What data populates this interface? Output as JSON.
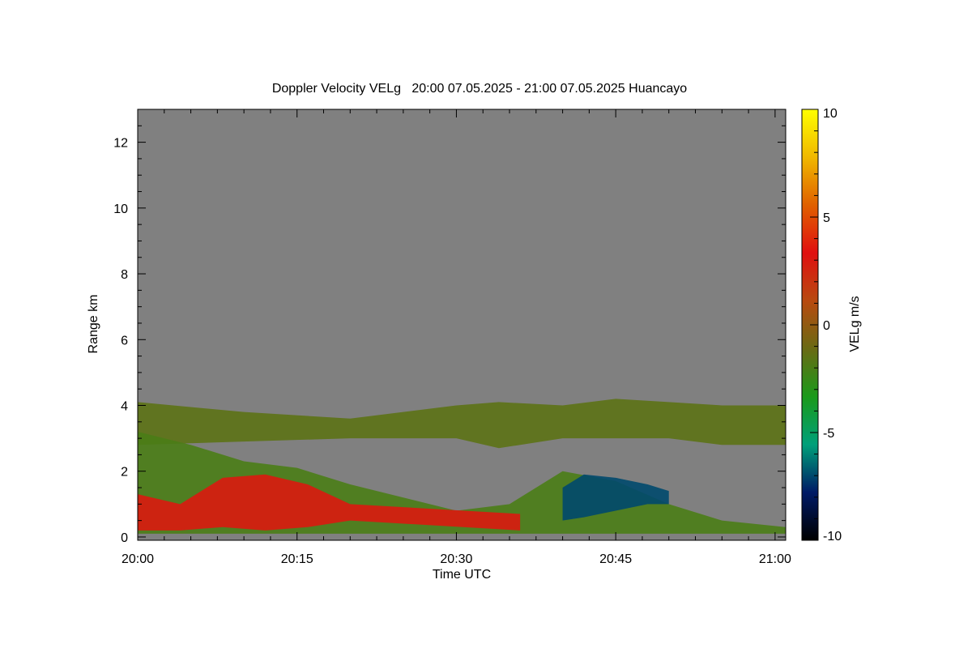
{
  "chart_data": {
    "type": "heatmap",
    "title": "Doppler Velocity VELg   20:00 07.05.2025 - 21:00 07.05.2025 Huancayo",
    "xlabel": "Time UTC",
    "ylabel": "Range km",
    "x_unit": "minutes after 20:00 UTC",
    "xlim": [
      0,
      61
    ],
    "ylim": [
      -0.1,
      13.0
    ],
    "x_ticks": [
      {
        "value": 0,
        "label": "20:00"
      },
      {
        "value": 15,
        "label": "20:15"
      },
      {
        "value": 30,
        "label": "20:30"
      },
      {
        "value": 45,
        "label": "20:45"
      },
      {
        "value": 60,
        "label": "21:00"
      }
    ],
    "y_ticks": [
      0,
      2,
      4,
      6,
      8,
      10,
      12
    ],
    "colorbar": {
      "label": "VELg m/s",
      "range": [
        -10,
        10
      ],
      "ticks": [
        10,
        5,
        0,
        -5,
        -10
      ],
      "colors": [
        "#000000",
        "#001a66",
        "#00a07a",
        "#1a9a1a",
        "#6a6a14",
        "#b84a10",
        "#e01010",
        "#e06000",
        "#f0b800",
        "#ffff00"
      ]
    },
    "background": {
      "label": "no signal",
      "color": "#808080"
    },
    "grid": false,
    "layers": [
      {
        "name": "cloud layer top",
        "x": [
          0,
          10,
          20,
          30,
          34,
          40,
          45,
          50,
          55,
          61
        ],
        "range_bottom_km": [
          2.8,
          2.9,
          3.0,
          3.0,
          2.7,
          3.0,
          3.0,
          3.0,
          2.8,
          2.8
        ],
        "range_top_km": [
          4.1,
          3.8,
          3.6,
          4.0,
          4.1,
          4.0,
          4.2,
          4.1,
          4.0,
          4.0
        ],
        "velocity": -1.5
      },
      {
        "name": "boundary layer",
        "x": [
          0,
          5,
          10,
          15,
          20,
          25,
          30,
          35,
          40,
          45,
          50,
          55,
          61
        ],
        "range_bottom_km": [
          0.1,
          0.1,
          0.1,
          0.1,
          0.1,
          0.1,
          0.1,
          0.1,
          0.1,
          0.1,
          0.1,
          0.1,
          0.1
        ],
        "range_top_km": [
          3.2,
          2.8,
          2.3,
          2.1,
          1.6,
          1.2,
          0.8,
          1.0,
          2.0,
          1.7,
          1.0,
          0.5,
          0.3
        ],
        "velocity": -2.0
      },
      {
        "name": "updraft",
        "x": [
          0,
          4,
          8,
          12,
          16,
          20,
          36
        ],
        "range_bottom_km": [
          0.2,
          0.2,
          0.3,
          0.2,
          0.3,
          0.5,
          0.2
        ],
        "range_top_km": [
          1.3,
          1.0,
          1.8,
          1.9,
          1.6,
          1.0,
          0.7
        ],
        "velocity": 3.0
      },
      {
        "name": "downdraft",
        "x": [
          40,
          42,
          45,
          48,
          50
        ],
        "range_bottom_km": [
          0.5,
          0.6,
          0.8,
          1.0,
          1.0
        ],
        "range_top_km": [
          1.5,
          1.9,
          1.8,
          1.6,
          1.4
        ],
        "velocity": -7.0
      }
    ]
  }
}
